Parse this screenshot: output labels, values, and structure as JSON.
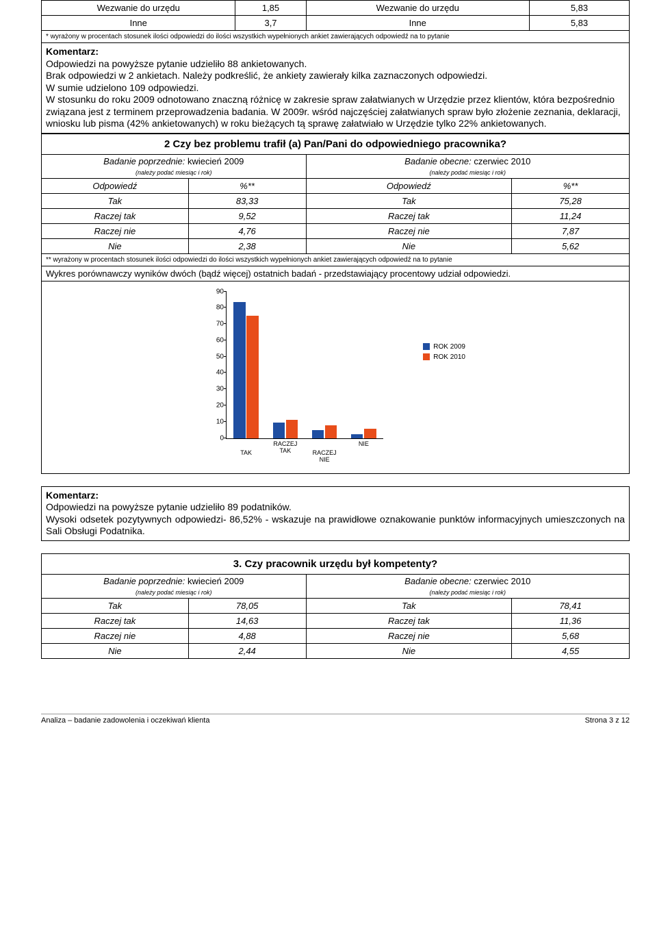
{
  "topTable": {
    "rows": [
      {
        "l_label": "Wezwanie do urzędu",
        "l_val": "1,85",
        "r_label": "Wezwanie do urzędu",
        "r_val": "5,83"
      },
      {
        "l_label": "Inne",
        "l_val": "3,7",
        "r_label": "Inne",
        "r_val": "5,83"
      }
    ],
    "footnote": "* wyrażony w procentach stosunek ilości odpowiedzi do ilości wszystkich wypełnionych ankiet zawierających odpowiedź na to pytanie"
  },
  "commentary1": {
    "heading": "Komentarz:",
    "lines": [
      "Odpowiedzi na powyższe pytanie udzieliło 88 ankietowanych.",
      "Brak odpowiedzi w 2 ankietach. Należy podkreślić, że ankiety zawierały kilka zaznaczonych odpowiedzi.",
      "W sumie udzielono 109 odpowiedzi.",
      "W stosunku do roku 2009 odnotowano znaczną różnicę w zakresie spraw załatwianych w Urzędzie przez klientów, która bezpośrednio związana jest z terminem przeprowadzenia badania. W 2009r. wśród najczęściej załatwianych spraw było złożenie zeznania, deklaracji, wniosku lub pisma (42% ankietowanych) w roku bieżących tą sprawę załatwiało w Urzędzie tylko 22% ankietowanych."
    ]
  },
  "q2": {
    "title": "2 Czy bez problemu trafił (a) Pan/Pani do odpowiedniego pracownika?",
    "prev": {
      "label": "Badanie poprzednie:",
      "month": " kwiecień 2009",
      "note": "(należy podać miesiąc i rok)"
    },
    "curr": {
      "label": "Badanie obecne:",
      "month": " czerwiec 2010",
      "note": "(należy podać miesiąc i rok)"
    },
    "colhead_l": "Odpowiedź",
    "colhead_pct": "%**",
    "rows": [
      {
        "l": "Tak",
        "lv": "83,33",
        "r": "Tak",
        "rv": "75,28"
      },
      {
        "l": "Raczej tak",
        "lv": "9,52",
        "r": "Raczej tak",
        "rv": "11,24"
      },
      {
        "l": "Raczej nie",
        "lv": "4,76",
        "r": "Raczej nie",
        "rv": "7,87"
      },
      {
        "l": "Nie",
        "lv": "2,38",
        "r": "Nie",
        "rv": "5,62"
      }
    ],
    "footnote": "** wyrażony w procentach stosunek ilości odpowiedzi do ilości wszystkich wypełnionych ankiet zawierających odpowiedź na to pytanie",
    "compare_note": "Wykres porównawczy wyników dwóch (bądź więcej) ostatnich badań - przedstawiający procentowy udział odpowiedzi."
  },
  "chart": {
    "type": "bar",
    "categories": [
      "TAK",
      "RACZEJ TAK",
      "RACZEJ NIE",
      "NIE"
    ],
    "series": [
      {
        "name": "ROK 2009",
        "color": "#1f4ea1",
        "values": [
          83.33,
          9.52,
          4.76,
          2.38
        ]
      },
      {
        "name": "ROK 2010",
        "color": "#e84d1a",
        "values": [
          75.28,
          11.24,
          7.87,
          5.62
        ]
      }
    ],
    "ylim": [
      0,
      90
    ],
    "ytick_step": 10,
    "tick_fontsize": 10,
    "background": "#ffffff"
  },
  "commentary2": {
    "heading": "Komentarz:",
    "line1": "Odpowiedzi na powyższe pytanie udzieliło 89 podatników.",
    "line2": "Wysoki odsetek pozytywnych odpowiedzi- 86,52% -  wskazuje na prawidłowe oznakowanie punktów informacyjnych umieszczonych na Sali Obsługi Podatnika."
  },
  "q3": {
    "title": "3. Czy pracownik urzędu był kompetenty?",
    "prev": {
      "label": "Badanie poprzednie:",
      "month": " kwiecień 2009",
      "note": "(należy podać miesiąc i rok)"
    },
    "curr": {
      "label": "Badanie obecne:",
      "month": " czerwiec 2010",
      "note": "(należy podać miesiąc i rok)"
    },
    "rows": [
      {
        "l": "Tak",
        "lv": "78,05",
        "r": "Tak",
        "rv": "78,41"
      },
      {
        "l": "Raczej tak",
        "lv": "14,63",
        "r": "Raczej tak",
        "rv": "11,36"
      },
      {
        "l": "Raczej nie",
        "lv": "4,88",
        "r": "Raczej nie",
        "rv": "5,68"
      },
      {
        "l": "Nie",
        "lv": "2,44",
        "r": "Nie",
        "rv": "4,55"
      }
    ]
  },
  "footer": {
    "left": "Analiza – badanie zadowolenia i oczekiwań klienta",
    "right": "Strona 3 z 12"
  }
}
